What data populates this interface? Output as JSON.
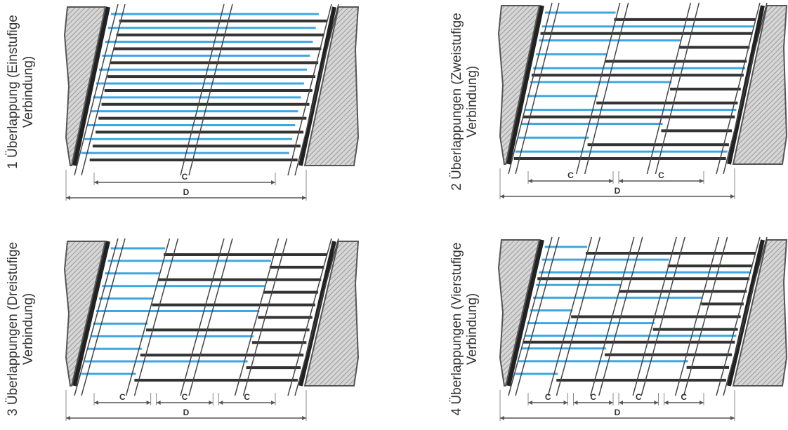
{
  "colors": {
    "blue": "#3ea7e0",
    "dark": "#333333",
    "mid": "#666666",
    "hatch": "#9a9a9a"
  },
  "panels": [
    {
      "id": "panel-1",
      "label_line1": "1 Überlappung (Einstufige",
      "label_line2": "Verbindung)",
      "stages": 1,
      "dim_c": "C",
      "dim_d": "D"
    },
    {
      "id": "panel-2",
      "label_line1": "2 Überlappungen (Zweistufige",
      "label_line2": "Verbindung)",
      "stages": 2,
      "dim_c": "C",
      "dim_d": "D"
    },
    {
      "id": "panel-3",
      "label_line1": "3 Überlappungen (Dreistufige",
      "label_line2": "Verbindung)",
      "stages": 3,
      "dim_c": "C",
      "dim_d": "D"
    },
    {
      "id": "panel-4",
      "label_line1": "4 Überlappungen (Vierstufige",
      "label_line2": "Verbindung)",
      "stages": 4,
      "dim_c": "C",
      "dim_d": "D"
    }
  ]
}
